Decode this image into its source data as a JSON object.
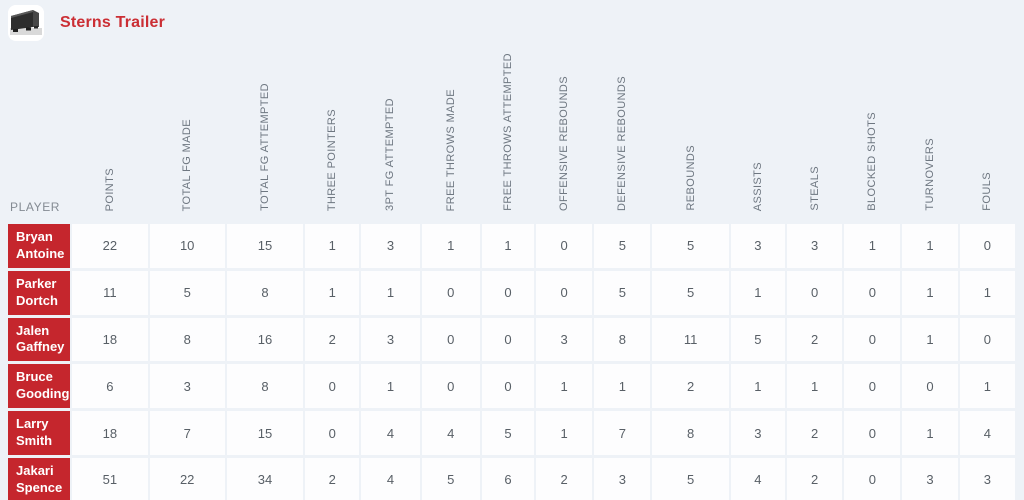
{
  "header": {
    "title": "Sterns Trailer",
    "logo_icon": "trailer-photo"
  },
  "table": {
    "player_header": "PLAYER",
    "stat_headers": [
      "POINTS",
      "TOTAL FG MADE",
      "TOTAL FG ATTEMPTED",
      "THREE POINTERS",
      "3PT FG ATTEMPTED",
      "FREE THROWS MADE",
      "FREE THROWS ATTEMPTED",
      "OFFENSIVE REBOUNDS",
      "DEFENSIVE REBOUNDS",
      "REBOUNDS",
      "ASSISTS",
      "STEALS",
      "BLOCKED SHOTS",
      "TURNOVERS",
      "FOULS"
    ],
    "rows": [
      {
        "player": "Bryan Antoine",
        "values": [
          22,
          10,
          15,
          1,
          3,
          1,
          1,
          0,
          5,
          5,
          3,
          3,
          1,
          1,
          0
        ]
      },
      {
        "player": "Parker Dortch",
        "values": [
          11,
          5,
          8,
          1,
          1,
          0,
          0,
          0,
          5,
          5,
          1,
          0,
          0,
          1,
          1
        ]
      },
      {
        "player": "Jalen Gaffney",
        "values": [
          18,
          8,
          16,
          2,
          3,
          0,
          0,
          3,
          8,
          11,
          5,
          2,
          0,
          1,
          0
        ]
      },
      {
        "player": "Bruce Gooding",
        "values": [
          6,
          3,
          8,
          0,
          1,
          0,
          0,
          1,
          1,
          2,
          1,
          1,
          0,
          0,
          1
        ]
      },
      {
        "player": "Larry Smith",
        "values": [
          18,
          7,
          15,
          0,
          4,
          4,
          5,
          1,
          7,
          8,
          3,
          2,
          0,
          1,
          4
        ]
      },
      {
        "player": "Jakari Spence",
        "values": [
          51,
          22,
          34,
          2,
          4,
          5,
          6,
          2,
          3,
          5,
          4,
          2,
          0,
          3,
          3
        ]
      }
    ]
  },
  "colors": {
    "accent_red": "#c5262d",
    "title_red": "#cb2e34",
    "page_background": "#eef2f7",
    "cell_background": "#fdfdfe",
    "stat_text": "#585f66",
    "column_header_text": "#6e7781"
  }
}
